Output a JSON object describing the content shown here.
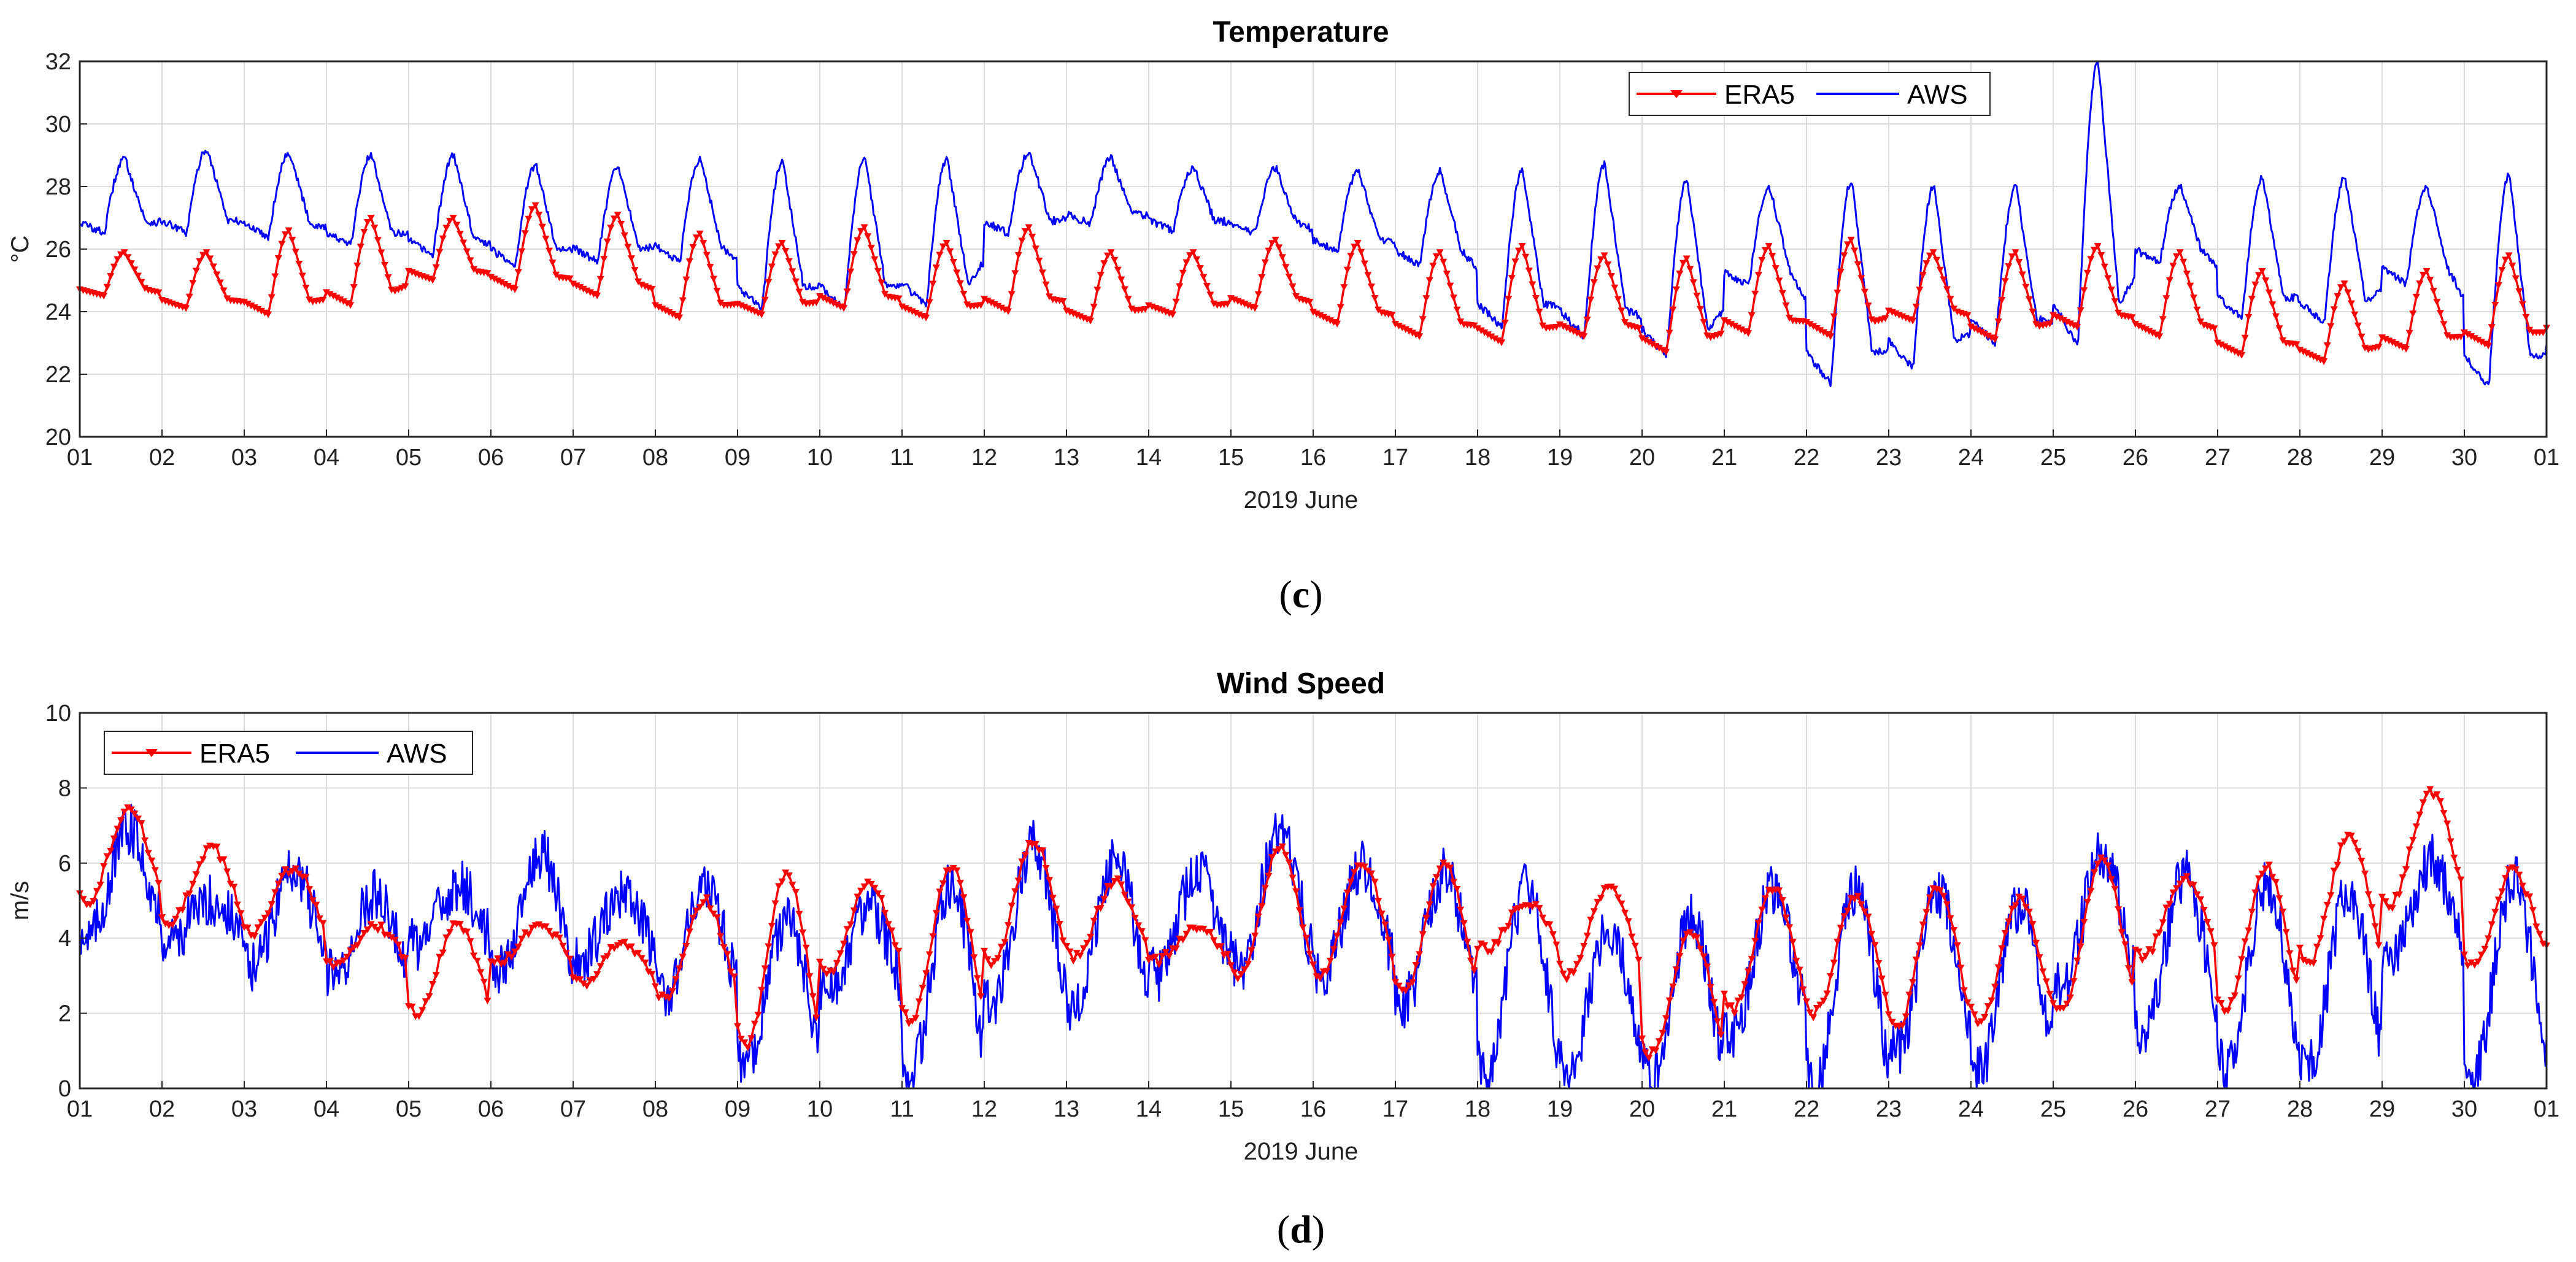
{
  "chart_data": [
    {
      "type": "line",
      "panel": "c",
      "title": "Temperature",
      "xlabel": "2019 June",
      "ylabel": "°C",
      "ylim": [
        20,
        32
      ],
      "yticks": [
        "20",
        "22",
        "24",
        "26",
        "28",
        "30",
        "32"
      ],
      "xlim": [
        1,
        31
      ],
      "xticks": [
        "01",
        "02",
        "03",
        "04",
        "05",
        "06",
        "07",
        "08",
        "09",
        "10",
        "11",
        "12",
        "13",
        "14",
        "15",
        "16",
        "17",
        "18",
        "19",
        "20",
        "21",
        "22",
        "23",
        "24",
        "25",
        "26",
        "27",
        "28",
        "29",
        "30",
        "01"
      ],
      "grid": true,
      "legend_position": "top-center",
      "series": [
        {
          "name": "ERA5",
          "color": "#ff0000",
          "marker": "triangle-down",
          "daily_min": [
            24.5,
            24.1,
            23.9,
            24.2,
            25.0,
            24.7,
            24.5,
            23.8,
            23.9,
            24.1,
            23.8,
            24.0,
            23.7,
            23.9,
            24.1,
            23.6,
            23.2,
            23.0,
            23.2,
            22.7,
            23.3,
            23.2,
            23.7,
            23.1,
            23.5,
            23.2,
            22.6,
            22.4,
            22.8,
            22.9
          ],
          "daily_max": [
            25.9,
            25.9,
            26.6,
            27.0,
            27.0,
            27.4,
            27.1,
            26.5,
            26.2,
            26.7,
            26.2,
            26.7,
            25.9,
            25.9,
            26.3,
            26.2,
            25.9,
            26.1,
            25.8,
            25.7,
            26.1,
            26.3,
            25.9,
            25.9,
            26.1,
            25.9,
            25.3,
            24.9,
            25.3,
            25.8
          ]
        },
        {
          "name": "AWS",
          "color": "#0000ff",
          "marker": "none",
          "daily_min": [
            26.5,
            26.5,
            26.4,
            26.1,
            25.8,
            25.5,
            25.6,
            25.6,
            24.1,
            24.1,
            24.2,
            26.5,
            26.8,
            26.6,
            26.5,
            25.9,
            25.5,
            23.5,
            23.2,
            22.6,
            24.8,
            21.7,
            22.2,
            23.0,
            22.9,
            25.6,
            23.8,
            23.6,
            24.9,
            21.6
          ],
          "daily_max": [
            28.9,
            29.2,
            29.1,
            29.0,
            29.0,
            28.7,
            28.6,
            28.9,
            28.8,
            28.9,
            28.9,
            29.1,
            28.9,
            28.6,
            28.6,
            28.5,
            28.5,
            28.5,
            28.7,
            28.2,
            28.0,
            28.2,
            28.0,
            28.0,
            32.0,
            28.0,
            28.3,
            28.3,
            28.0,
            28.4
          ]
        }
      ]
    },
    {
      "type": "line",
      "panel": "d",
      "title": "Wind Speed",
      "xlabel": "2019 June",
      "ylabel": "m/s",
      "ylim": [
        0,
        10
      ],
      "yticks": [
        "0",
        "2",
        "4",
        "6",
        "8",
        "10"
      ],
      "xlim": [
        1,
        31
      ],
      "xticks": [
        "01",
        "02",
        "03",
        "04",
        "05",
        "06",
        "07",
        "08",
        "09",
        "10",
        "11",
        "12",
        "13",
        "14",
        "15",
        "16",
        "17",
        "18",
        "19",
        "20",
        "21",
        "22",
        "23",
        "24",
        "25",
        "26",
        "27",
        "28",
        "29",
        "30",
        "01"
      ],
      "grid": true,
      "legend_position": "top-left",
      "series": [
        {
          "name": "ERA5",
          "color": "#ff0000",
          "marker": "triangle-down",
          "daily_min": [
            5.0,
            4.4,
            4.1,
            3.3,
            2.0,
            3.4,
            2.8,
            2.4,
            1.1,
            3.1,
            1.8,
            3.3,
            3.5,
            3.4,
            2.9,
            3.0,
            2.5,
            3.7,
            3.0,
            0.9,
            2.1,
            2.0,
            1.6,
            1.8,
            2.0,
            3.5,
            2.1,
            3.3,
            4.9,
            3.3
          ],
          "daily_max": [
            7.5,
            6.4,
            5.9,
            4.3,
            4.4,
            4.3,
            3.9,
            5.0,
            5.7,
            5.5,
            5.9,
            6.6,
            5.5,
            4.3,
            6.4,
            6.0,
            5.9,
            5.0,
            5.4,
            4.2,
            5.3,
            5.1,
            5.4,
            5.0,
            6.1,
            5.6,
            5.9,
            6.7,
            7.9,
            5.8
          ]
        },
        {
          "name": "AWS",
          "color": "#0000ff",
          "marker": "none",
          "daily_min": [
            4.0,
            4.0,
            3.2,
            3.0,
            3.8,
            3.1,
            3.5,
            2.5,
            0.6,
            2.5,
            0.4,
            2.3,
            2.1,
            3.0,
            3.2,
            3.0,
            2.3,
            0.3,
            0.4,
            0.3,
            1.5,
            0.1,
            1.0,
            0.5,
            2.6,
            1.5,
            0.6,
            0.6,
            3.3,
            0.3
          ],
          "daily_max": [
            6.9,
            5.0,
            5.9,
            5.2,
            5.4,
            6.3,
            5.1,
            5.3,
            4.5,
            4.9,
            5.5,
            6.5,
            6.1,
            5.8,
            6.8,
            5.9,
            5.7,
            5.4,
            4.3,
            4.5,
            5.3,
            5.3,
            5.2,
            4.9,
            6.3,
            5.7,
            5.4,
            5.3,
            6.1,
            5.6
          ]
        }
      ]
    }
  ],
  "panel_labels": {
    "c": "c",
    "d": "d"
  }
}
